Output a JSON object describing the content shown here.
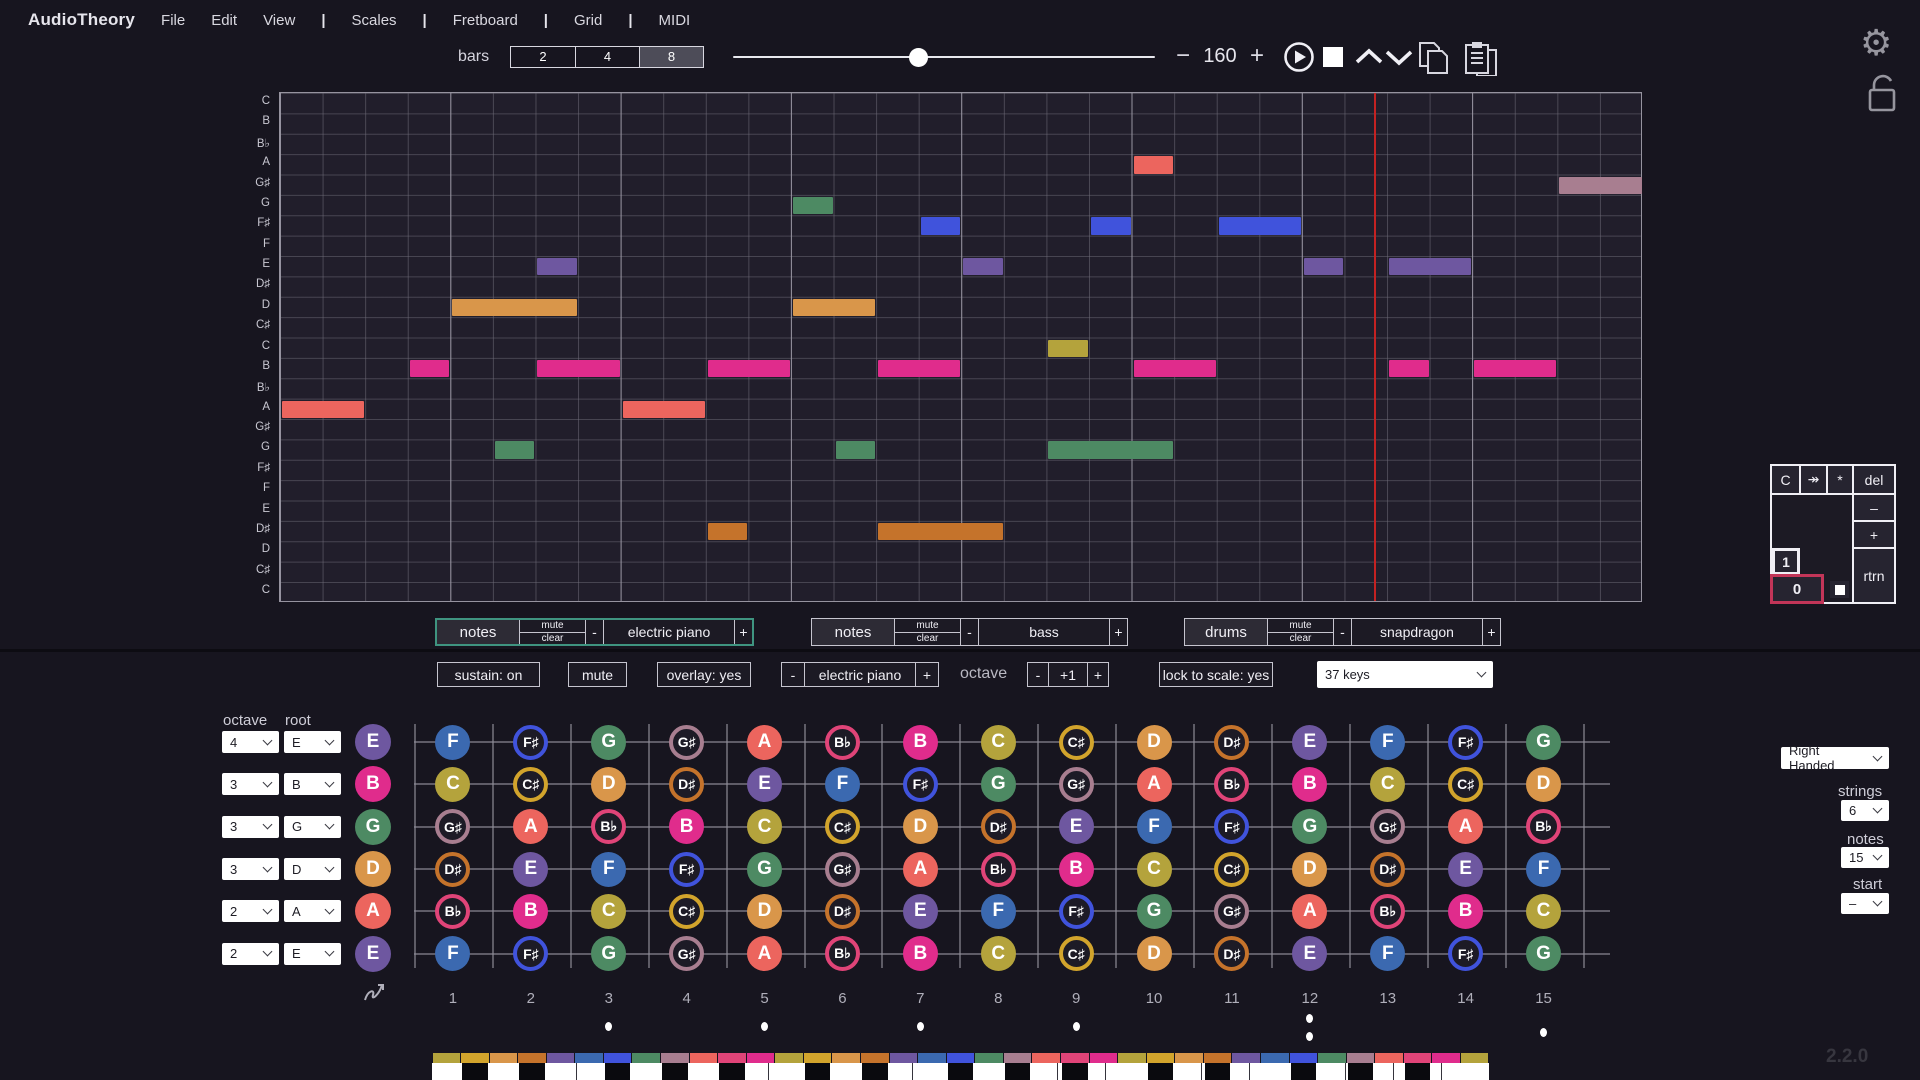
{
  "menu": {
    "brand": "AudioTheory",
    "items": [
      "File",
      "Edit",
      "View",
      "|",
      "Scales",
      "|",
      "Fretboard",
      "|",
      "Grid",
      "|",
      "MIDI"
    ]
  },
  "transport": {
    "bars_label": "bars",
    "bar_options": [
      "2",
      "4",
      "8"
    ],
    "bars_selected": "8",
    "minus": "−",
    "tempo": "160",
    "plus": "+"
  },
  "note_colors": {
    "C": "#b4a33c",
    "C♯": "#d2a42c",
    "D": "#d9964a",
    "D♯": "#c5732b",
    "E": "#6e57a0",
    "F": "#3b69b0",
    "F♯": "#4053dc",
    "G": "#4d8a63",
    "G♯": "#a87e90",
    "A": "#ec655e",
    "B♭": "#e04478",
    "B": "#e02c8c"
  },
  "accidentals": [
    "C♯",
    "D♯",
    "F♯",
    "G♯",
    "B♭"
  ],
  "piano_roll": {
    "row_labels": [
      "C",
      "B",
      "B♭",
      "A",
      "G♯",
      "G",
      "F♯",
      "F",
      "E",
      "D♯",
      "D",
      "C♯",
      "C",
      "B",
      "B♭",
      "A",
      "G♯",
      "G",
      "F♯",
      "F",
      "E",
      "D♯",
      "D",
      "C♯",
      "C"
    ],
    "cols": 32,
    "playhead_cols": 25.7,
    "notes": [
      {
        "row": 4,
        "col": 21,
        "span": 1,
        "note": "A"
      },
      {
        "row": 5,
        "col": 31,
        "span": 2,
        "note": "G♯"
      },
      {
        "row": 6,
        "col": 13,
        "span": 1,
        "note": "G"
      },
      {
        "row": 7,
        "col": 16,
        "span": 1,
        "note": "F♯"
      },
      {
        "row": 7,
        "col": 20,
        "span": 1,
        "note": "F♯"
      },
      {
        "row": 7,
        "col": 23,
        "span": 2,
        "note": "F♯"
      },
      {
        "row": 9,
        "col": 7,
        "span": 1,
        "note": "E"
      },
      {
        "row": 9,
        "col": 17,
        "span": 1,
        "note": "E"
      },
      {
        "row": 9,
        "col": 25,
        "span": 1,
        "note": "E"
      },
      {
        "row": 9,
        "col": 27,
        "span": 2,
        "note": "E"
      },
      {
        "row": 11,
        "col": 5,
        "span": 3,
        "note": "D"
      },
      {
        "row": 11,
        "col": 13,
        "span": 2,
        "note": "D"
      },
      {
        "row": 13,
        "col": 19,
        "span": 1,
        "note": "C"
      },
      {
        "row": 14,
        "col": 4,
        "span": 1,
        "note": "B"
      },
      {
        "row": 14,
        "col": 7,
        "span": 2,
        "note": "B"
      },
      {
        "row": 14,
        "col": 11,
        "span": 2,
        "note": "B"
      },
      {
        "row": 14,
        "col": 15,
        "span": 2,
        "note": "B"
      },
      {
        "row": 14,
        "col": 21,
        "span": 2,
        "note": "B"
      },
      {
        "row": 14,
        "col": 27,
        "span": 1,
        "note": "B"
      },
      {
        "row": 14,
        "col": 29,
        "span": 2,
        "note": "B"
      },
      {
        "row": 16,
        "col": 1,
        "span": 2,
        "note": "A"
      },
      {
        "row": 16,
        "col": 9,
        "span": 2,
        "note": "A"
      },
      {
        "row": 18,
        "col": 6,
        "span": 1,
        "note": "G"
      },
      {
        "row": 18,
        "col": 14,
        "span": 1,
        "note": "G"
      },
      {
        "row": 18,
        "col": 19,
        "span": 3,
        "note": "G"
      },
      {
        "row": 22,
        "col": 11,
        "span": 1,
        "note": "D♯"
      },
      {
        "row": 22,
        "col": 15,
        "span": 3,
        "note": "D♯"
      }
    ]
  },
  "tracks": [
    {
      "name": "notes",
      "mute": "mute",
      "clear": "clear",
      "minus": "-",
      "instrument": "electric piano",
      "plus": "+",
      "active": true
    },
    {
      "name": "notes",
      "mute": "mute",
      "clear": "clear",
      "minus": "-",
      "instrument": "bass",
      "plus": "+",
      "active": false
    },
    {
      "name": "drums",
      "mute": "mute",
      "clear": "clear",
      "minus": "-",
      "instrument": "snapdragon",
      "plus": "+",
      "active": false
    }
  ],
  "toolbar": {
    "sustain": "sustain: on",
    "mute": "mute",
    "overlay": "overlay: yes",
    "inst_minus": "-",
    "instrument": "electric piano",
    "inst_plus": "+",
    "octave_label": "octave",
    "oct_minus": "-",
    "oct_value": "+1",
    "oct_plus": "+",
    "lock": "lock to scale: yes",
    "keys_dropdown": "37 keys"
  },
  "numpad": {
    "clear": "C",
    "skip": "↠",
    "star": "*",
    "del": "del",
    "minus": "–",
    "plus": "+",
    "rtrn": "rtrn",
    "one": "1",
    "zero": "0"
  },
  "fretboard": {
    "octave_label": "octave",
    "root_label": "root",
    "strings": [
      {
        "octave": "4",
        "root": "E"
      },
      {
        "octave": "3",
        "root": "B"
      },
      {
        "octave": "3",
        "root": "G"
      },
      {
        "octave": "3",
        "root": "D"
      },
      {
        "octave": "2",
        "root": "A"
      },
      {
        "octave": "2",
        "root": "E"
      }
    ],
    "matrix": [
      [
        "F",
        "F♯",
        "G",
        "G♯",
        "A",
        "B♭",
        "B",
        "C",
        "C♯",
        "D",
        "D♯",
        "E",
        "F",
        "F♯",
        "G"
      ],
      [
        "C",
        "C♯",
        "D",
        "D♯",
        "E",
        "F",
        "F♯",
        "G",
        "G♯",
        "A",
        "B♭",
        "B",
        "C",
        "C♯",
        "D"
      ],
      [
        "G♯",
        "A",
        "B♭",
        "B",
        "C",
        "C♯",
        "D",
        "D♯",
        "E",
        "F",
        "F♯",
        "G",
        "G♯",
        "A",
        "B♭"
      ],
      [
        "D♯",
        "E",
        "F",
        "F♯",
        "G",
        "G♯",
        "A",
        "B♭",
        "B",
        "C",
        "C♯",
        "D",
        "D♯",
        "E",
        "F"
      ],
      [
        "B♭",
        "B",
        "C",
        "C♯",
        "D",
        "D♯",
        "E",
        "F",
        "F♯",
        "G",
        "G♯",
        "A",
        "B♭",
        "B",
        "C"
      ],
      [
        "F",
        "F♯",
        "G",
        "G♯",
        "A",
        "B♭",
        "B",
        "C",
        "C♯",
        "D",
        "D♯",
        "E",
        "F",
        "F♯",
        "G"
      ]
    ],
    "fret_numbers": [
      "1",
      "2",
      "3",
      "4",
      "5",
      "6",
      "7",
      "8",
      "9",
      "10",
      "11",
      "12",
      "13",
      "14",
      "15"
    ],
    "dot_frets": [
      3,
      5,
      7,
      9,
      15
    ],
    "double_dot_fret": 12
  },
  "right_panel": {
    "handedness": "Right Handed",
    "strings_label": "strings",
    "strings_value": "6",
    "notes_label": "notes",
    "notes_value": "15",
    "start_label": "start",
    "start_value": "–"
  },
  "piano": {
    "keys": 37,
    "start_chromatic_index": 0,
    "chromatic": [
      "C",
      "C♯",
      "D",
      "D♯",
      "E",
      "F",
      "F♯",
      "G",
      "G♯",
      "A",
      "B♭",
      "B"
    ]
  },
  "version": "2.2.0"
}
